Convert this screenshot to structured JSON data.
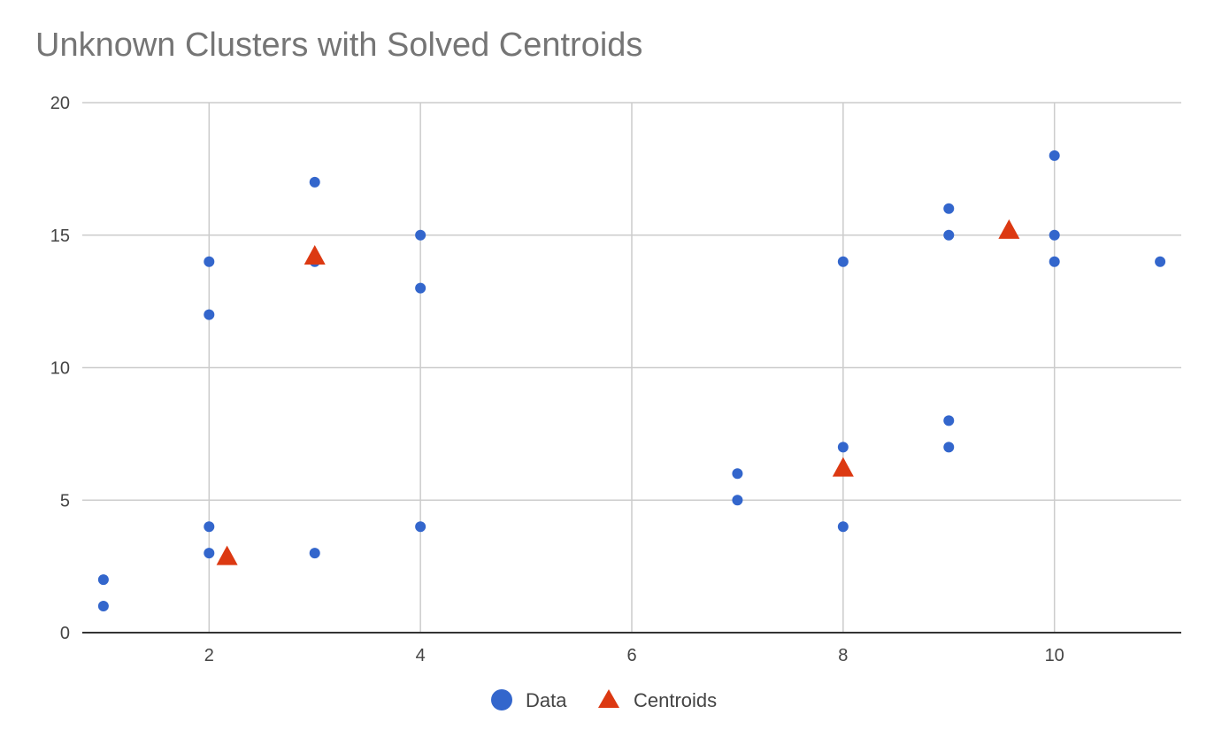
{
  "chart_data": {
    "type": "scatter",
    "title": "Unknown Clusters with Solved Centroids",
    "xlabel": "",
    "ylabel": "",
    "xlim": [
      0.8,
      11.2
    ],
    "ylim": [
      0,
      20
    ],
    "x_ticks": [
      2,
      4,
      6,
      8,
      10
    ],
    "y_ticks": [
      0,
      5,
      10,
      15,
      20
    ],
    "grid": true,
    "legend_position": "bottom",
    "series": [
      {
        "name": "Data",
        "marker": "circle",
        "color": "#3366cc",
        "points": [
          {
            "x": 1,
            "y": 1
          },
          {
            "x": 1,
            "y": 2
          },
          {
            "x": 2,
            "y": 3
          },
          {
            "x": 2,
            "y": 4
          },
          {
            "x": 2,
            "y": 12
          },
          {
            "x": 2,
            "y": 14
          },
          {
            "x": 3,
            "y": 3
          },
          {
            "x": 3,
            "y": 14
          },
          {
            "x": 3,
            "y": 17
          },
          {
            "x": 4,
            "y": 4
          },
          {
            "x": 4,
            "y": 13
          },
          {
            "x": 4,
            "y": 15
          },
          {
            "x": 7,
            "y": 5
          },
          {
            "x": 7,
            "y": 6
          },
          {
            "x": 8,
            "y": 4
          },
          {
            "x": 8,
            "y": 7
          },
          {
            "x": 8,
            "y": 14
          },
          {
            "x": 9,
            "y": 7
          },
          {
            "x": 9,
            "y": 8
          },
          {
            "x": 9,
            "y": 15
          },
          {
            "x": 9,
            "y": 16
          },
          {
            "x": 10,
            "y": 14
          },
          {
            "x": 10,
            "y": 15
          },
          {
            "x": 10,
            "y": 18
          },
          {
            "x": 11,
            "y": 14
          }
        ]
      },
      {
        "name": "Centroids",
        "marker": "triangle",
        "color": "#dc3912",
        "points": [
          {
            "x": 2.17,
            "y": 2.83
          },
          {
            "x": 3.0,
            "y": 14.17
          },
          {
            "x": 8.0,
            "y": 6.17
          },
          {
            "x": 9.57,
            "y": 15.14
          }
        ]
      }
    ]
  }
}
